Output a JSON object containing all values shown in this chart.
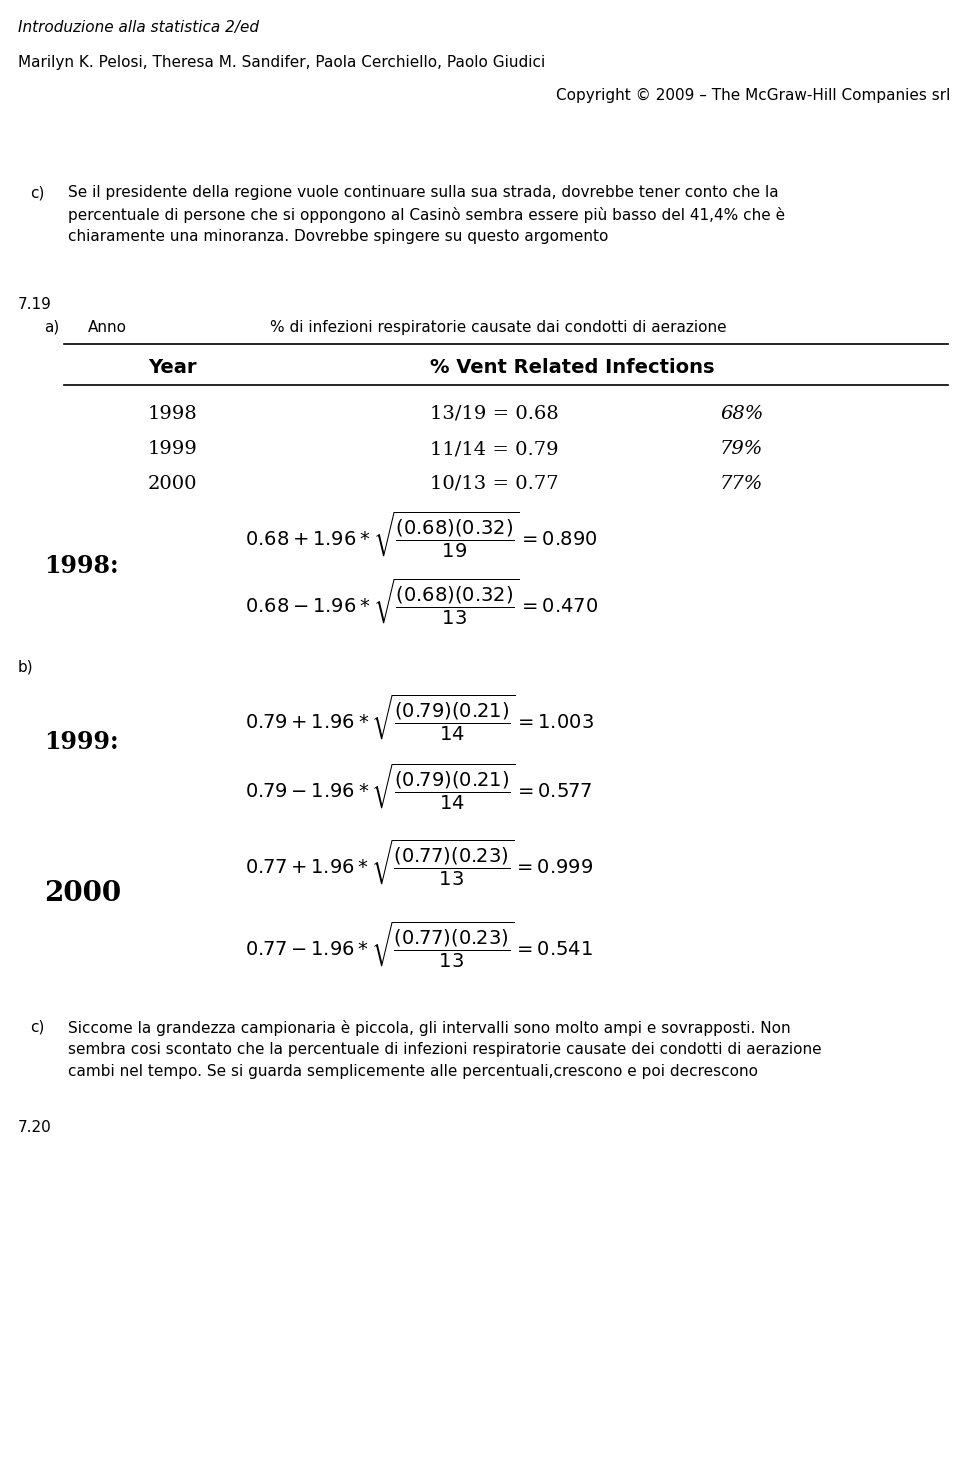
{
  "title_italic": "Introduzione alla statistica 2/ed",
  "authors": "Marilyn K. Pelosi, Theresa M. Sandifer, Paola Cerchiello, Paolo Giudici",
  "copyright": "Copyright © 2009 – The McGraw-Hill Companies srl",
  "section_number": "7.19",
  "part_a_col1": "Anno",
  "part_a_col2": "% di infezioni respiratorie causate dai condotti di aerazione",
  "table_header_col1": "Year",
  "table_header_col2": "% Vent Related Infections",
  "table_rows": [
    [
      "1998",
      "13/19 = 0.68",
      "68%"
    ],
    [
      "1999",
      "11/14 = 0.79",
      "79%"
    ],
    [
      "2000",
      "10/13 = 0.77",
      "77%"
    ]
  ],
  "bg_color": "#ffffff",
  "text_color": "#000000",
  "section_end": "7.20"
}
